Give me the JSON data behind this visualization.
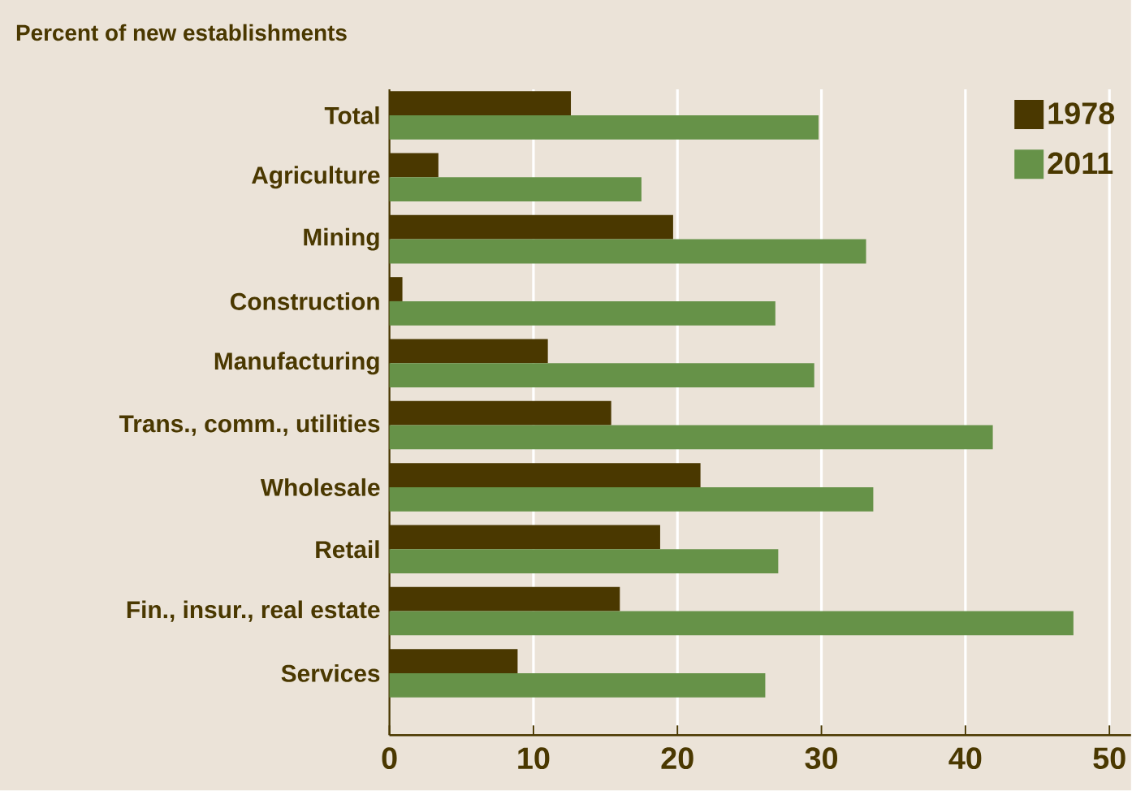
{
  "chart_data": {
    "type": "bar",
    "orientation": "horizontal",
    "title": "Percent of new establishments",
    "categories": [
      "Total",
      "Agriculture",
      "Mining",
      "Construction",
      "Manufacturing",
      "Trans., comm., utilities",
      "Wholesale",
      "Retail",
      "Fin., insur., real estate",
      "Services"
    ],
    "series": [
      {
        "name": "1978",
        "color": "#4a3800",
        "values": [
          12.6,
          3.4,
          19.7,
          0.9,
          11.0,
          15.4,
          21.6,
          18.8,
          16.0,
          8.9
        ]
      },
      {
        "name": "2011",
        "color": "#669248",
        "values": [
          29.8,
          17.5,
          33.1,
          26.8,
          29.5,
          41.9,
          33.6,
          27.0,
          47.5,
          26.1
        ]
      }
    ],
    "xlim": [
      0,
      51.5
    ],
    "xticks": [
      0,
      10,
      20,
      30,
      40,
      50
    ],
    "grid": "x",
    "legend": "top right"
  }
}
